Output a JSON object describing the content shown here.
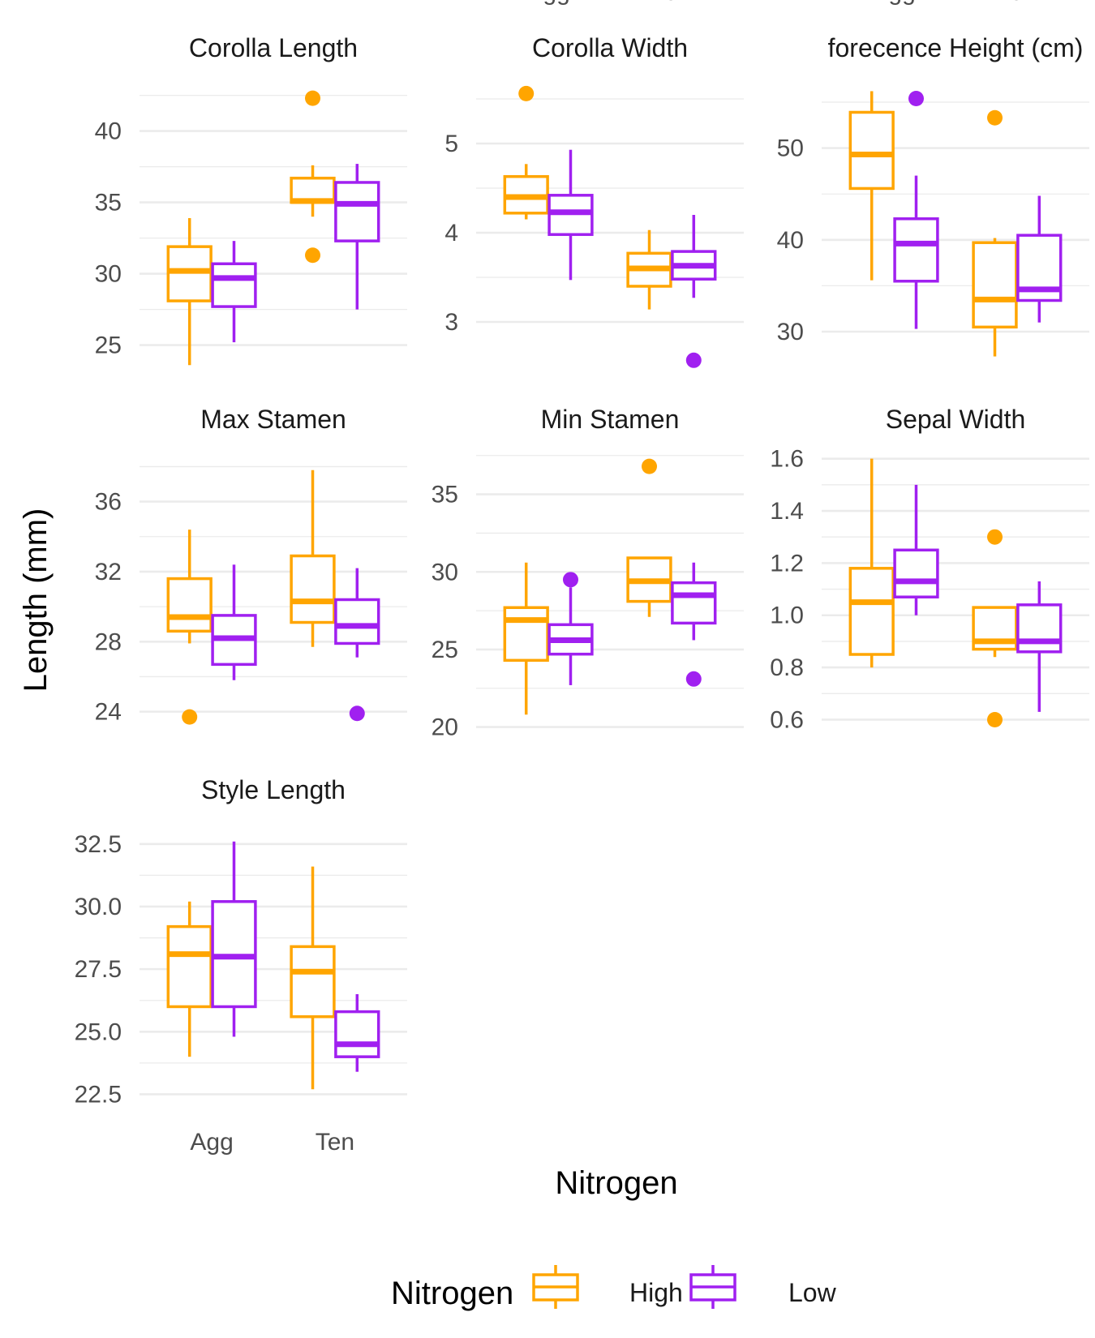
{
  "chart_data": {
    "type": "box",
    "xlabel": "Nitrogen",
    "ylabel": "Length (mm)",
    "legend": {
      "title": "Nitrogen",
      "position": "bottom",
      "entries": [
        {
          "name": "High",
          "color": "#FFA500"
        },
        {
          "name": "Low",
          "color": "#A020F0"
        }
      ]
    },
    "categories": [
      "Agg",
      "Ten"
    ],
    "grid": true,
    "facets": [
      {
        "title": "Corolla Length",
        "ylim": [
          23.5,
          43.5
        ],
        "yticks": [
          25,
          30,
          35,
          40
        ],
        "tick_labels": [
          "25",
          "30",
          "35",
          "40"
        ],
        "boxes": [
          {
            "category": "Agg",
            "group": "High",
            "min": 23.6,
            "q1": 28.1,
            "median": 30.2,
            "q3": 31.9,
            "max": 33.9,
            "outliers": []
          },
          {
            "category": "Agg",
            "group": "Low",
            "min": 25.2,
            "q1": 27.7,
            "median": 29.7,
            "q3": 30.7,
            "max": 32.3,
            "outliers": []
          },
          {
            "category": "Ten",
            "group": "High",
            "min": 34.0,
            "q1": 35.0,
            "median": 35.1,
            "q3": 36.7,
            "max": 37.6,
            "outliers": [
              42.3,
              31.3
            ]
          },
          {
            "category": "Ten",
            "group": "Low",
            "min": 27.5,
            "q1": 32.3,
            "median": 34.9,
            "q3": 36.4,
            "max": 37.7,
            "outliers": []
          }
        ]
      },
      {
        "title": "Corolla Width",
        "ylim": [
          2.5,
          5.7
        ],
        "yticks": [
          3,
          4,
          5
        ],
        "tick_labels": [
          "3",
          "4",
          "5"
        ],
        "boxes": [
          {
            "category": "Agg",
            "group": "High",
            "min": 4.15,
            "q1": 4.22,
            "median": 4.4,
            "q3": 4.63,
            "max": 4.77,
            "outliers": [
              5.56
            ]
          },
          {
            "category": "Agg",
            "group": "Low",
            "min": 3.47,
            "q1": 3.98,
            "median": 4.23,
            "q3": 4.42,
            "max": 4.93,
            "outliers": []
          },
          {
            "category": "Ten",
            "group": "High",
            "min": 3.14,
            "q1": 3.4,
            "median": 3.6,
            "q3": 3.77,
            "max": 4.03,
            "outliers": []
          },
          {
            "category": "Ten",
            "group": "Low",
            "min": 3.27,
            "q1": 3.48,
            "median": 3.63,
            "q3": 3.79,
            "max": 4.2,
            "outliers": [
              2.57
            ]
          }
        ]
      },
      {
        "title": "forecence Height (cm)",
        "ylim": [
          26.2,
          57.3
        ],
        "yticks": [
          30,
          40,
          50
        ],
        "tick_labels": [
          "30",
          "40",
          "50"
        ],
        "boxes": [
          {
            "category": "Agg",
            "group": "High",
            "min": 35.6,
            "q1": 45.6,
            "median": 49.3,
            "q3": 53.9,
            "max": 56.2,
            "outliers": []
          },
          {
            "category": "Agg",
            "group": "Low",
            "min": 30.3,
            "q1": 35.5,
            "median": 39.6,
            "q3": 42.3,
            "max": 47.0,
            "outliers": [
              55.4
            ]
          },
          {
            "category": "Ten",
            "group": "High",
            "min": 27.3,
            "q1": 30.5,
            "median": 33.5,
            "q3": 39.7,
            "max": 40.2,
            "outliers": [
              53.3
            ]
          },
          {
            "category": "Ten",
            "group": "Low",
            "min": 31.0,
            "q1": 33.4,
            "median": 34.6,
            "q3": 40.5,
            "max": 44.8,
            "outliers": []
          }
        ]
      },
      {
        "title": "Max Stamen",
        "ylim": [
          22.5,
          38.9
        ],
        "yticks": [
          24,
          28,
          32,
          36
        ],
        "tick_labels": [
          "24",
          "28",
          "32",
          "36"
        ],
        "boxes": [
          {
            "category": "Agg",
            "group": "High",
            "min": 27.9,
            "q1": 28.6,
            "median": 29.4,
            "q3": 31.6,
            "max": 34.4,
            "outliers": [
              23.7
            ]
          },
          {
            "category": "Agg",
            "group": "Low",
            "min": 25.8,
            "q1": 26.7,
            "median": 28.2,
            "q3": 29.5,
            "max": 32.4,
            "outliers": []
          },
          {
            "category": "Ten",
            "group": "High",
            "min": 27.7,
            "q1": 29.1,
            "median": 30.3,
            "q3": 32.9,
            "max": 37.8,
            "outliers": []
          },
          {
            "category": "Ten",
            "group": "Low",
            "min": 27.1,
            "q1": 27.9,
            "median": 28.9,
            "q3": 30.4,
            "max": 32.2,
            "outliers": [
              23.9
            ]
          }
        ]
      },
      {
        "title": "Min Stamen",
        "ylim": [
          19.3,
          37.8
        ],
        "yticks": [
          20,
          25,
          30,
          35
        ],
        "tick_labels": [
          "20",
          "25",
          "30",
          "35"
        ],
        "boxes": [
          {
            "category": "Agg",
            "group": "High",
            "min": 20.8,
            "q1": 24.3,
            "median": 26.9,
            "q3": 27.7,
            "max": 30.6,
            "outliers": []
          },
          {
            "category": "Agg",
            "group": "Low",
            "min": 22.7,
            "q1": 24.7,
            "median": 25.6,
            "q3": 26.6,
            "max": 29.0,
            "outliers": [
              29.5
            ]
          },
          {
            "category": "Ten",
            "group": "High",
            "min": 27.1,
            "q1": 28.1,
            "median": 29.4,
            "q3": 30.9,
            "max": 30.9,
            "outliers": [
              36.8
            ]
          },
          {
            "category": "Ten",
            "group": "Low",
            "min": 25.6,
            "q1": 26.7,
            "median": 28.5,
            "q3": 29.3,
            "max": 30.6,
            "outliers": [
              23.1
            ]
          }
        ]
      },
      {
        "title": "Sepal Width",
        "ylim": [
          0.53,
          1.63
        ],
        "yticks": [
          0.6,
          0.8,
          1.0,
          1.2,
          1.4,
          1.6
        ],
        "tick_labels": [
          "0.6",
          "0.8",
          "1.0",
          "1.2",
          "1.4",
          "1.6"
        ],
        "boxes": [
          {
            "category": "Agg",
            "group": "High",
            "min": 0.8,
            "q1": 0.85,
            "median": 1.05,
            "q3": 1.18,
            "max": 1.6,
            "outliers": []
          },
          {
            "category": "Agg",
            "group": "Low",
            "min": 1.0,
            "q1": 1.07,
            "median": 1.13,
            "q3": 1.25,
            "max": 1.5,
            "outliers": []
          },
          {
            "category": "Ten",
            "group": "High",
            "min": 0.84,
            "q1": 0.87,
            "median": 0.9,
            "q3": 1.03,
            "max": 1.03,
            "outliers": [
              1.3,
              0.6
            ]
          },
          {
            "category": "Ten",
            "group": "Low",
            "min": 0.63,
            "q1": 0.86,
            "median": 0.9,
            "q3": 1.04,
            "max": 1.13,
            "outliers": []
          }
        ]
      },
      {
        "title": "Style Length",
        "ylim": [
          21.9,
          33.4
        ],
        "yticks": [
          22.5,
          25.0,
          27.5,
          30.0,
          32.5
        ],
        "tick_labels": [
          "22.5",
          "25.0",
          "27.5",
          "30.0",
          "32.5"
        ],
        "boxes": [
          {
            "category": "Agg",
            "group": "High",
            "min": 24.0,
            "q1": 26.0,
            "median": 28.1,
            "q3": 29.2,
            "max": 30.2,
            "outliers": []
          },
          {
            "category": "Agg",
            "group": "Low",
            "min": 24.8,
            "q1": 26.0,
            "median": 28.0,
            "q3": 30.2,
            "max": 32.6,
            "outliers": []
          },
          {
            "category": "Ten",
            "group": "High",
            "min": 22.7,
            "q1": 25.6,
            "median": 27.4,
            "q3": 28.4,
            "max": 31.6,
            "outliers": []
          },
          {
            "category": "Ten",
            "group": "Low",
            "min": 23.4,
            "q1": 24.0,
            "median": 24.5,
            "q3": 25.8,
            "max": 26.5,
            "outliers": []
          }
        ]
      }
    ]
  }
}
